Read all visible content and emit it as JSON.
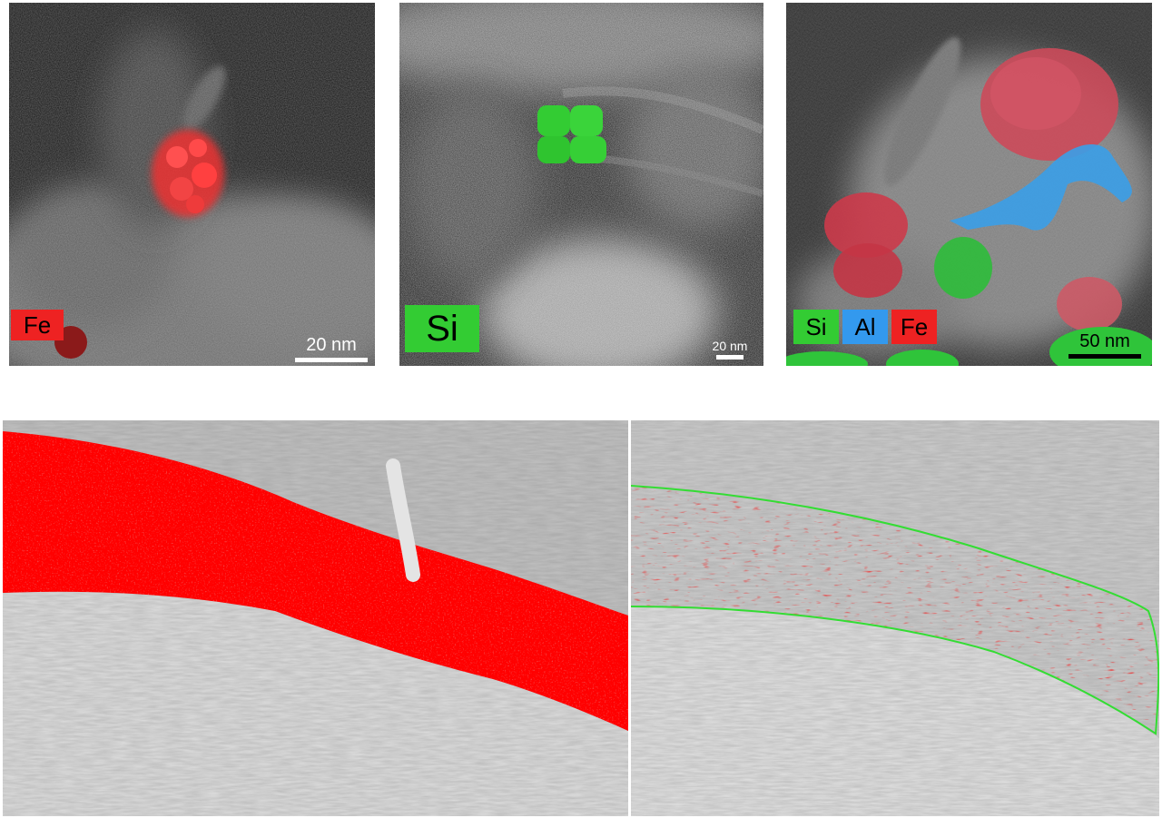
{
  "panel_a": {
    "element_tag": "Fe",
    "scale_bar": "20 nm",
    "colors": {
      "fe": "#ee2222"
    }
  },
  "panel_b": {
    "element_tag": "Si",
    "scale_bar": "20 nm",
    "colors": {
      "si": "#33cc33"
    }
  },
  "panel_c": {
    "element_tags": [
      "Si",
      "Al",
      "Fe"
    ],
    "scale_bar": "50 nm",
    "colors": {
      "si": "#33cc33",
      "al": "#3399ee",
      "fe": "#ee2222"
    }
  },
  "panel_d": {
    "overlay_color": "#ff0000"
  },
  "panel_e": {
    "overlay_color": "#ff0000",
    "outline_color": "#33dd33"
  }
}
